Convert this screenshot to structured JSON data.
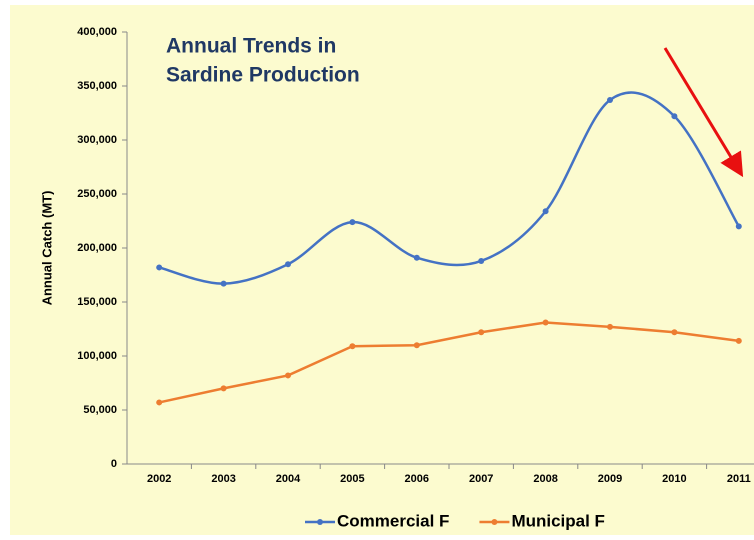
{
  "chart_data": {
    "type": "line",
    "title": [
      "Annual Trends in",
      "Sardine Production"
    ],
    "y_label": "Annual Catch (MT)",
    "categories": [
      "2002",
      "2003",
      "2004",
      "2005",
      "2006",
      "2007",
      "2008",
      "2009",
      "2010",
      "2011"
    ],
    "series": [
      {
        "name": "Commercial F",
        "color": "#4472c4",
        "smooth": true,
        "values": [
          182000,
          167000,
          185000,
          224000,
          191000,
          188000,
          234000,
          337000,
          322000,
          220000
        ]
      },
      {
        "name": "Municipal F",
        "color": "#ed7d31",
        "smooth": false,
        "values": [
          57000,
          70000,
          82000,
          109000,
          110000,
          122000,
          131000,
          127000,
          122000,
          114000
        ]
      }
    ],
    "ylim": [
      0,
      400000
    ],
    "yticks": [
      0,
      {
        "value": 50000,
        "label": "50,000"
      },
      {
        "value": 100000,
        "label": "100,000"
      },
      {
        "value": 150000,
        "label": "150,000"
      },
      {
        "value": 200000,
        "label": "200,000"
      },
      {
        "value": 250000,
        "label": "250,000"
      },
      {
        "value": 300000,
        "label": "300,000"
      },
      {
        "value": 350000,
        "label": "350,000"
      },
      {
        "value": 400000,
        "label": "400,000"
      }
    ],
    "legend": "bottom"
  }
}
